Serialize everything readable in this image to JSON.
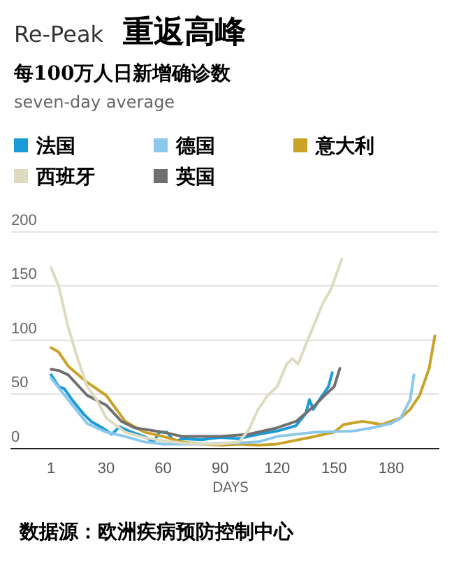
{
  "chart_data": {
    "type": "line",
    "title": "重返高峰",
    "subtitle": "每100万人日新增确诊数",
    "xlabel": "DAYS",
    "annotations": [
      "Re-Peak",
      "seven-day average",
      "数据源：欧洲疾病预防控制中心"
    ],
    "xlim": [
      -20,
      205
    ],
    "xticks": [
      1,
      30,
      60,
      90,
      120,
      150,
      180
    ],
    "ylim": [
      0,
      200
    ],
    "yticks": [
      0,
      50,
      100,
      150,
      200
    ],
    "grid": "y",
    "legend": "top",
    "marker": "none",
    "line_style": "solid",
    "series": [
      {
        "name": "西班牙",
        "color": "#dedbc0",
        "x": [
          1,
          5,
          10,
          15,
          20,
          25,
          30,
          40,
          50,
          60,
          70,
          80,
          90,
          100,
          105,
          110,
          115,
          120,
          125,
          128,
          131,
          134,
          137,
          141,
          144,
          148,
          150,
          152,
          154
        ],
        "values": [
          167,
          150,
          112,
          83,
          57,
          45,
          28,
          15,
          10,
          7,
          5,
          4,
          4,
          6,
          17,
          36,
          49,
          57,
          78,
          83,
          78,
          91,
          104,
          121,
          134,
          146,
          155,
          165,
          175
        ]
      },
      {
        "name": "英国",
        "color": "#707070",
        "x": [
          1,
          5,
          10,
          20,
          30,
          38,
          45,
          60,
          70,
          90,
          105,
          120,
          130,
          140,
          145,
          150,
          153
        ],
        "values": [
          73,
          72,
          68,
          49,
          40,
          25,
          19,
          15,
          11,
          11,
          13,
          19,
          25,
          40,
          49,
          57,
          74
        ]
      },
      {
        "name": "德国",
        "color": "#8cc8ec",
        "x": [
          1,
          10,
          15,
          20,
          30,
          40,
          50,
          60,
          80,
          100,
          110,
          120,
          140,
          160,
          170,
          180,
          185,
          190,
          192
        ],
        "values": [
          65,
          45,
          34,
          23,
          15,
          11,
          6,
          4,
          4,
          5,
          6,
          11,
          15,
          16,
          19,
          23,
          28,
          45,
          68
        ]
      },
      {
        "name": "意大利",
        "color": "#c9a227",
        "x": [
          1,
          5,
          10,
          20,
          30,
          40,
          50,
          60,
          70,
          80,
          90,
          100,
          110,
          120,
          140,
          150,
          155,
          165,
          175,
          185,
          190,
          195,
          200,
          203
        ],
        "values": [
          93,
          89,
          76,
          61,
          49,
          25,
          15,
          11,
          6,
          4,
          3,
          4,
          3,
          4,
          11,
          15,
          22,
          25,
          22,
          28,
          36,
          49,
          74,
          104
        ]
      },
      {
        "name": "法国",
        "color": "#1a9bd7",
        "x": [
          1,
          5,
          8,
          12,
          18,
          22,
          28,
          33,
          37,
          42,
          50,
          55,
          58,
          62,
          66,
          70,
          80,
          90,
          100,
          105,
          110,
          120,
          130,
          135,
          137,
          139,
          143,
          147,
          149
        ],
        "values": [
          68,
          57,
          55,
          45,
          32,
          25,
          19,
          13,
          20,
          16,
          11,
          6,
          15,
          15,
          6,
          9,
          8,
          10,
          9,
          11,
          13,
          16,
          21,
          32,
          45,
          36,
          47,
          57,
          70
        ]
      }
    ]
  }
}
